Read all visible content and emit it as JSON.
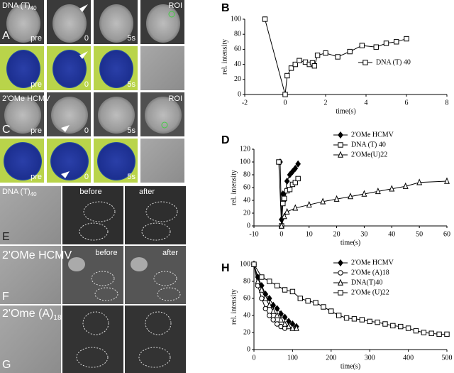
{
  "micrographs": {
    "row_a": {
      "letter": "A",
      "title": "DNA (T)",
      "title_sub": "40",
      "captions": [
        "pre",
        "0",
        "5s",
        "ROI"
      ]
    },
    "row_a_color": {
      "captions": [
        "pre",
        "0",
        "5s"
      ]
    },
    "row_c": {
      "letter": "C",
      "title": "2'OMe HCMV",
      "captions": [
        "pre",
        "0",
        "5s",
        "ROI"
      ]
    },
    "row_c_color": {
      "captions": [
        "pre",
        "0",
        "5s"
      ]
    },
    "row_e": {
      "letter": "E",
      "title": "DNA (T)",
      "title_sub": "40",
      "captions": [
        "before",
        "after"
      ]
    },
    "row_f": {
      "letter": "F",
      "title": "2'OMe HCMV",
      "captions": [
        "before",
        "after"
      ]
    },
    "row_g": {
      "letter": "G",
      "title": "2'Ome (A)",
      "title_sub": "18"
    }
  },
  "chart_data": [
    {
      "type": "line",
      "panel": "B",
      "x_label": "time(s)",
      "y_label": "rel. intensity",
      "xlim": [
        -2,
        8
      ],
      "xticks": [
        -2,
        0,
        2,
        4,
        6,
        8
      ],
      "ylim": [
        0,
        100
      ],
      "yticks": [
        0,
        20,
        40,
        60,
        80,
        100
      ],
      "legend": "right",
      "series": [
        {
          "name": "DNA (T) 40",
          "color": "#000000",
          "marker": "square",
          "x": [
            -1,
            0,
            0.1,
            0.3,
            0.5,
            0.7,
            1.0,
            1.2,
            1.35,
            1.45,
            1.6,
            2.0,
            2.6,
            3.2,
            3.8,
            4.5,
            5.0,
            5.5,
            6.0
          ],
          "values": [
            100,
            0,
            25,
            35,
            40,
            45,
            43,
            40,
            42,
            38,
            52,
            55,
            50,
            57,
            65,
            63,
            68,
            70,
            74
          ]
        }
      ]
    },
    {
      "type": "line",
      "panel": "D",
      "x_label": "time(s)",
      "y_label": "rel. intensity",
      "xlim": [
        -10,
        60
      ],
      "xticks": [
        -10,
        0,
        10,
        20,
        30,
        40,
        50,
        60
      ],
      "ylim": [
        0,
        120
      ],
      "yticks": [
        0,
        20,
        40,
        60,
        80,
        100,
        120
      ],
      "legend": "right",
      "series": [
        {
          "name": "2'OMe HCMV",
          "color": "#000000",
          "marker": "diamond",
          "x": [
            -0.5,
            0,
            0.5,
            1,
            2,
            3,
            4,
            5,
            6
          ],
          "values": [
            100,
            10,
            50,
            40,
            70,
            80,
            85,
            90,
            97
          ]
        },
        {
          "name": "DNA (T) 40",
          "color": "#000000",
          "marker": "square",
          "x": [
            -1,
            0,
            0.5,
            1,
            2,
            3,
            4,
            5,
            6
          ],
          "values": [
            100,
            0,
            35,
            43,
            55,
            57,
            65,
            68,
            74
          ]
        },
        {
          "name": "2'OMe(U)22",
          "color": "#000000",
          "marker": "triangle",
          "x": [
            0,
            1,
            2,
            5,
            10,
            15,
            20,
            25,
            30,
            35,
            40,
            45,
            50,
            60
          ],
          "values": [
            0,
            15,
            22,
            28,
            33,
            38,
            42,
            46,
            50,
            54,
            58,
            62,
            68,
            70
          ]
        }
      ]
    },
    {
      "type": "line",
      "panel": "H",
      "x_label": "time(s)",
      "y_label": "rel. intensity",
      "xlim": [
        0,
        500
      ],
      "xticks": [
        0,
        100,
        200,
        300,
        400,
        500
      ],
      "ylim": [
        0,
        100
      ],
      "yticks": [
        0,
        20,
        40,
        60,
        80,
        100
      ],
      "legend": "right",
      "series": [
        {
          "name": "2'OMe HCMV",
          "color": "#000000",
          "marker": "diamond",
          "x": [
            0,
            10,
            20,
            30,
            40,
            50,
            60,
            70,
            80,
            90,
            100,
            110
          ],
          "values": [
            100,
            85,
            75,
            65,
            60,
            52,
            48,
            42,
            38,
            33,
            30,
            27
          ]
        },
        {
          "name": "2'OMe (A)18",
          "color": "#000000",
          "marker": "circle",
          "x": [
            0,
            10,
            20,
            30,
            40,
            50,
            60,
            70,
            80
          ],
          "values": [
            100,
            75,
            60,
            48,
            40,
            35,
            30,
            27,
            25
          ]
        },
        {
          "name": "DNA(T)40",
          "color": "#000000",
          "marker": "triangle",
          "x": [
            0,
            10,
            20,
            30,
            40,
            50,
            60,
            70,
            80,
            90,
            100,
            110
          ],
          "values": [
            100,
            80,
            70,
            60,
            52,
            45,
            40,
            35,
            30,
            27,
            25,
            25
          ]
        },
        {
          "name": "2'OMe (U)22",
          "color": "#000000",
          "marker": "square",
          "x": [
            0,
            20,
            40,
            60,
            80,
            100,
            120,
            140,
            160,
            180,
            200,
            220,
            240,
            260,
            280,
            300,
            320,
            340,
            360,
            380,
            400,
            420,
            440,
            460,
            480,
            500
          ],
          "values": [
            100,
            85,
            80,
            75,
            70,
            68,
            60,
            57,
            55,
            50,
            45,
            40,
            37,
            36,
            35,
            33,
            32,
            30,
            28,
            27,
            25,
            22,
            20,
            19,
            18,
            18
          ]
        }
      ]
    }
  ]
}
